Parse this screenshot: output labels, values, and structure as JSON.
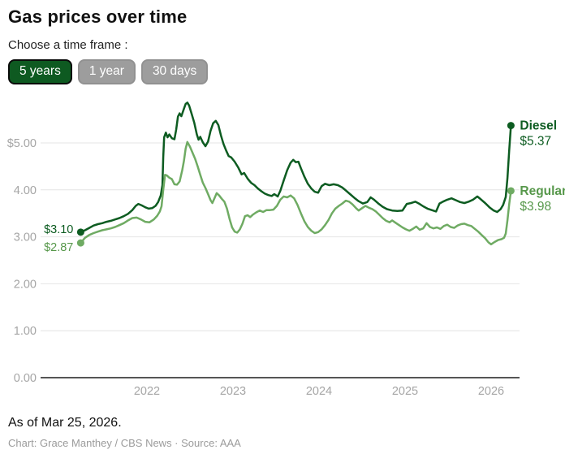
{
  "header": {
    "title": "Gas prices over time",
    "subtitle": "Choose a time frame :",
    "buttons": [
      {
        "label": "5 years",
        "selected": true
      },
      {
        "label": "1 year",
        "selected": false
      },
      {
        "label": "30 days",
        "selected": false
      }
    ]
  },
  "colors": {
    "diesel": "#0d5c21",
    "regular": "#6fab63",
    "regular_text": "#57984b",
    "grid": "#e4e4e4",
    "axis": "#555555",
    "tick_label": "#a5a5a5",
    "button_selected_bg": "#0e5a21",
    "button_gray_bg": "#9d9d9d"
  },
  "chart_data": {
    "type": "line",
    "title": "Gas prices over time",
    "xlabel": "",
    "ylabel": "",
    "grid": true,
    "legend_position": "end-of-line-labels",
    "x_range": [
      2021.23,
      2026.23
    ],
    "ylim": [
      0,
      6
    ],
    "x_ticks": [
      {
        "label": "2022",
        "value": 2022
      },
      {
        "label": "2023",
        "value": 2023
      },
      {
        "label": "2024",
        "value": 2024
      },
      {
        "label": "2025",
        "value": 2025
      },
      {
        "label": "2026",
        "value": 2026
      }
    ],
    "y_ticks": [
      {
        "label": "$5.00",
        "value": 5
      },
      {
        "label": "4.00",
        "value": 4
      },
      {
        "label": "3.00",
        "value": 3
      },
      {
        "label": "2.00",
        "value": 2
      },
      {
        "label": "1.00",
        "value": 1
      },
      {
        "label": "0.00",
        "value": 0
      }
    ],
    "series": [
      {
        "name": "Diesel",
        "color": "#0d5c21",
        "label_color": "#0d5c21",
        "start_label": "$3.10",
        "end_label": "$5.37",
        "start_value": 3.1,
        "end_value": 5.37,
        "start_label_dy": -3,
        "points": [
          [
            2021.23,
            3.1
          ],
          [
            2021.28,
            3.14
          ],
          [
            2021.33,
            3.19
          ],
          [
            2021.38,
            3.24
          ],
          [
            2021.43,
            3.27
          ],
          [
            2021.48,
            3.29
          ],
          [
            2021.53,
            3.32
          ],
          [
            2021.58,
            3.34
          ],
          [
            2021.63,
            3.37
          ],
          [
            2021.68,
            3.4
          ],
          [
            2021.73,
            3.44
          ],
          [
            2021.78,
            3.49
          ],
          [
            2021.83,
            3.57
          ],
          [
            2021.87,
            3.66
          ],
          [
            2021.9,
            3.7
          ],
          [
            2021.94,
            3.67
          ],
          [
            2021.98,
            3.63
          ],
          [
            2022.02,
            3.6
          ],
          [
            2022.06,
            3.61
          ],
          [
            2022.1,
            3.66
          ],
          [
            2022.13,
            3.74
          ],
          [
            2022.16,
            3.88
          ],
          [
            2022.18,
            4.1
          ],
          [
            2022.19,
            4.7
          ],
          [
            2022.2,
            5.12
          ],
          [
            2022.22,
            5.22
          ],
          [
            2022.24,
            5.12
          ],
          [
            2022.26,
            5.18
          ],
          [
            2022.29,
            5.1
          ],
          [
            2022.32,
            5.08
          ],
          [
            2022.34,
            5.28
          ],
          [
            2022.36,
            5.56
          ],
          [
            2022.38,
            5.63
          ],
          [
            2022.4,
            5.57
          ],
          [
            2022.43,
            5.73
          ],
          [
            2022.45,
            5.83
          ],
          [
            2022.47,
            5.86
          ],
          [
            2022.49,
            5.8
          ],
          [
            2022.52,
            5.62
          ],
          [
            2022.55,
            5.43
          ],
          [
            2022.58,
            5.18
          ],
          [
            2022.6,
            5.07
          ],
          [
            2022.62,
            5.13
          ],
          [
            2022.65,
            5.01
          ],
          [
            2022.68,
            4.93
          ],
          [
            2022.71,
            5.03
          ],
          [
            2022.74,
            5.26
          ],
          [
            2022.77,
            5.42
          ],
          [
            2022.8,
            5.47
          ],
          [
            2022.83,
            5.38
          ],
          [
            2022.86,
            5.16
          ],
          [
            2022.89,
            4.98
          ],
          [
            2022.92,
            4.84
          ],
          [
            2022.95,
            4.72
          ],
          [
            2022.98,
            4.69
          ],
          [
            2023.02,
            4.6
          ],
          [
            2023.06,
            4.48
          ],
          [
            2023.1,
            4.33
          ],
          [
            2023.13,
            4.36
          ],
          [
            2023.17,
            4.24
          ],
          [
            2023.21,
            4.15
          ],
          [
            2023.25,
            4.1
          ],
          [
            2023.29,
            4.03
          ],
          [
            2023.33,
            3.97
          ],
          [
            2023.37,
            3.92
          ],
          [
            2023.41,
            3.89
          ],
          [
            2023.45,
            3.87
          ],
          [
            2023.48,
            3.91
          ],
          [
            2023.52,
            3.86
          ],
          [
            2023.55,
            3.98
          ],
          [
            2023.59,
            4.2
          ],
          [
            2023.63,
            4.42
          ],
          [
            2023.67,
            4.58
          ],
          [
            2023.7,
            4.64
          ],
          [
            2023.73,
            4.59
          ],
          [
            2023.76,
            4.6
          ],
          [
            2023.79,
            4.46
          ],
          [
            2023.83,
            4.28
          ],
          [
            2023.87,
            4.13
          ],
          [
            2023.91,
            4.03
          ],
          [
            2023.95,
            3.96
          ],
          [
            2023.99,
            3.94
          ],
          [
            2024.03,
            4.08
          ],
          [
            2024.07,
            4.13
          ],
          [
            2024.12,
            4.1
          ],
          [
            2024.17,
            4.12
          ],
          [
            2024.22,
            4.1
          ],
          [
            2024.27,
            4.05
          ],
          [
            2024.31,
            3.99
          ],
          [
            2024.36,
            3.91
          ],
          [
            2024.41,
            3.83
          ],
          [
            2024.46,
            3.76
          ],
          [
            2024.51,
            3.71
          ],
          [
            2024.56,
            3.74
          ],
          [
            2024.6,
            3.84
          ],
          [
            2024.64,
            3.79
          ],
          [
            2024.69,
            3.71
          ],
          [
            2024.74,
            3.64
          ],
          [
            2024.79,
            3.59
          ],
          [
            2024.85,
            3.56
          ],
          [
            2024.91,
            3.55
          ],
          [
            2024.97,
            3.56
          ],
          [
            2025.02,
            3.7
          ],
          [
            2025.07,
            3.72
          ],
          [
            2025.12,
            3.75
          ],
          [
            2025.16,
            3.71
          ],
          [
            2025.21,
            3.65
          ],
          [
            2025.26,
            3.6
          ],
          [
            2025.31,
            3.57
          ],
          [
            2025.36,
            3.54
          ],
          [
            2025.4,
            3.71
          ],
          [
            2025.44,
            3.75
          ],
          [
            2025.49,
            3.79
          ],
          [
            2025.54,
            3.82
          ],
          [
            2025.59,
            3.78
          ],
          [
            2025.64,
            3.74
          ],
          [
            2025.69,
            3.72
          ],
          [
            2025.74,
            3.75
          ],
          [
            2025.79,
            3.79
          ],
          [
            2025.84,
            3.86
          ],
          [
            2025.88,
            3.8
          ],
          [
            2025.93,
            3.72
          ],
          [
            2025.98,
            3.63
          ],
          [
            2026.03,
            3.56
          ],
          [
            2026.07,
            3.53
          ],
          [
            2026.11,
            3.59
          ],
          [
            2026.14,
            3.68
          ],
          [
            2026.17,
            3.85
          ],
          [
            2026.19,
            4.25
          ],
          [
            2026.21,
            4.85
          ],
          [
            2026.23,
            5.37
          ]
        ]
      },
      {
        "name": "Regular",
        "color": "#6fab63",
        "label_color": "#57984b",
        "start_label": "$2.87",
        "end_label": "$3.98",
        "start_value": 2.87,
        "end_value": 3.98,
        "start_label_dy": 6,
        "points": [
          [
            2021.23,
            2.87
          ],
          [
            2021.28,
            2.98
          ],
          [
            2021.33,
            3.04
          ],
          [
            2021.38,
            3.08
          ],
          [
            2021.43,
            3.11
          ],
          [
            2021.48,
            3.14
          ],
          [
            2021.53,
            3.16
          ],
          [
            2021.58,
            3.18
          ],
          [
            2021.63,
            3.21
          ],
          [
            2021.68,
            3.25
          ],
          [
            2021.73,
            3.29
          ],
          [
            2021.78,
            3.35
          ],
          [
            2021.83,
            3.4
          ],
          [
            2021.88,
            3.41
          ],
          [
            2021.93,
            3.37
          ],
          [
            2021.98,
            3.32
          ],
          [
            2022.03,
            3.31
          ],
          [
            2022.08,
            3.37
          ],
          [
            2022.12,
            3.45
          ],
          [
            2022.15,
            3.54
          ],
          [
            2022.17,
            3.65
          ],
          [
            2022.19,
            4.0
          ],
          [
            2022.21,
            4.32
          ],
          [
            2022.23,
            4.31
          ],
          [
            2022.26,
            4.26
          ],
          [
            2022.29,
            4.23
          ],
          [
            2022.32,
            4.12
          ],
          [
            2022.35,
            4.11
          ],
          [
            2022.38,
            4.18
          ],
          [
            2022.41,
            4.42
          ],
          [
            2022.43,
            4.62
          ],
          [
            2022.45,
            4.88
          ],
          [
            2022.47,
            5.02
          ],
          [
            2022.5,
            4.92
          ],
          [
            2022.53,
            4.79
          ],
          [
            2022.56,
            4.66
          ],
          [
            2022.59,
            4.5
          ],
          [
            2022.62,
            4.32
          ],
          [
            2022.65,
            4.15
          ],
          [
            2022.68,
            4.04
          ],
          [
            2022.71,
            3.91
          ],
          [
            2022.74,
            3.78
          ],
          [
            2022.76,
            3.72
          ],
          [
            2022.79,
            3.84
          ],
          [
            2022.81,
            3.93
          ],
          [
            2022.84,
            3.88
          ],
          [
            2022.87,
            3.81
          ],
          [
            2022.9,
            3.75
          ],
          [
            2022.93,
            3.6
          ],
          [
            2022.96,
            3.38
          ],
          [
            2022.99,
            3.2
          ],
          [
            2023.02,
            3.11
          ],
          [
            2023.05,
            3.09
          ],
          [
            2023.08,
            3.16
          ],
          [
            2023.11,
            3.28
          ],
          [
            2023.14,
            3.44
          ],
          [
            2023.17,
            3.46
          ],
          [
            2023.2,
            3.42
          ],
          [
            2023.23,
            3.47
          ],
          [
            2023.27,
            3.52
          ],
          [
            2023.31,
            3.56
          ],
          [
            2023.35,
            3.53
          ],
          [
            2023.39,
            3.57
          ],
          [
            2023.43,
            3.57
          ],
          [
            2023.47,
            3.58
          ],
          [
            2023.51,
            3.66
          ],
          [
            2023.55,
            3.79
          ],
          [
            2023.59,
            3.86
          ],
          [
            2023.63,
            3.84
          ],
          [
            2023.67,
            3.88
          ],
          [
            2023.71,
            3.82
          ],
          [
            2023.75,
            3.68
          ],
          [
            2023.79,
            3.5
          ],
          [
            2023.83,
            3.33
          ],
          [
            2023.87,
            3.21
          ],
          [
            2023.91,
            3.13
          ],
          [
            2023.95,
            3.08
          ],
          [
            2023.99,
            3.1
          ],
          [
            2024.03,
            3.16
          ],
          [
            2024.07,
            3.25
          ],
          [
            2024.11,
            3.36
          ],
          [
            2024.15,
            3.5
          ],
          [
            2024.19,
            3.6
          ],
          [
            2024.23,
            3.66
          ],
          [
            2024.27,
            3.71
          ],
          [
            2024.31,
            3.77
          ],
          [
            2024.35,
            3.75
          ],
          [
            2024.39,
            3.69
          ],
          [
            2024.43,
            3.61
          ],
          [
            2024.46,
            3.56
          ],
          [
            2024.5,
            3.61
          ],
          [
            2024.54,
            3.66
          ],
          [
            2024.58,
            3.62
          ],
          [
            2024.62,
            3.59
          ],
          [
            2024.66,
            3.54
          ],
          [
            2024.7,
            3.47
          ],
          [
            2024.74,
            3.4
          ],
          [
            2024.78,
            3.34
          ],
          [
            2024.82,
            3.31
          ],
          [
            2024.85,
            3.35
          ],
          [
            2024.89,
            3.3
          ],
          [
            2024.93,
            3.25
          ],
          [
            2024.97,
            3.2
          ],
          [
            2025.01,
            3.16
          ],
          [
            2025.05,
            3.13
          ],
          [
            2025.09,
            3.17
          ],
          [
            2025.13,
            3.22
          ],
          [
            2025.17,
            3.15
          ],
          [
            2025.21,
            3.18
          ],
          [
            2025.25,
            3.29
          ],
          [
            2025.29,
            3.21
          ],
          [
            2025.33,
            3.18
          ],
          [
            2025.37,
            3.2
          ],
          [
            2025.41,
            3.17
          ],
          [
            2025.45,
            3.23
          ],
          [
            2025.49,
            3.26
          ],
          [
            2025.53,
            3.21
          ],
          [
            2025.57,
            3.19
          ],
          [
            2025.61,
            3.24
          ],
          [
            2025.65,
            3.27
          ],
          [
            2025.69,
            3.28
          ],
          [
            2025.73,
            3.25
          ],
          [
            2025.77,
            3.23
          ],
          [
            2025.81,
            3.17
          ],
          [
            2025.85,
            3.11
          ],
          [
            2025.89,
            3.04
          ],
          [
            2025.93,
            2.97
          ],
          [
            2025.97,
            2.88
          ],
          [
            2026.0,
            2.84
          ],
          [
            2026.04,
            2.89
          ],
          [
            2026.08,
            2.93
          ],
          [
            2026.12,
            2.95
          ],
          [
            2026.15,
            2.98
          ],
          [
            2026.17,
            3.07
          ],
          [
            2026.19,
            3.35
          ],
          [
            2026.21,
            3.7
          ],
          [
            2026.23,
            3.98
          ]
        ]
      }
    ]
  },
  "footer": {
    "as_of": "As of Mar 25, 2026.",
    "credit": "Chart: Grace Manthey / CBS News · Source: AAA"
  }
}
